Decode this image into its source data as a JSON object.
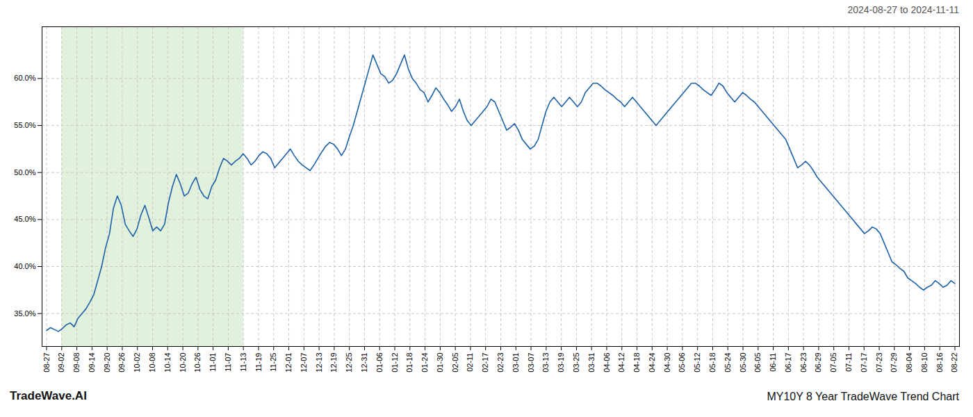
{
  "chart_data": {
    "type": "line",
    "title": "MY10Y 8 Year TradeWave Trend Chart",
    "subtitle": "2024-08-27 to 2024-11-11",
    "annotations": [
      "TradeWave.AI"
    ],
    "color": "#1a5fa8",
    "grid": true,
    "shaded_span": {
      "x": [
        1,
        13
      ],
      "color": "#c8e6c0"
    },
    "xlim": [
      -0.3,
      60.3
    ],
    "xticks": [
      {
        "value": 0,
        "label": "08-27"
      },
      {
        "value": 1,
        "label": "09-02"
      },
      {
        "value": 2,
        "label": "09-08"
      },
      {
        "value": 3,
        "label": "09-14"
      },
      {
        "value": 4,
        "label": "09-20"
      },
      {
        "value": 5,
        "label": "09-26"
      },
      {
        "value": 6,
        "label": "10-02"
      },
      {
        "value": 7,
        "label": "10-08"
      },
      {
        "value": 8,
        "label": "10-14"
      },
      {
        "value": 9,
        "label": "10-20"
      },
      {
        "value": 10,
        "label": "10-26"
      },
      {
        "value": 11,
        "label": "11-01"
      },
      {
        "value": 12,
        "label": "11-07"
      },
      {
        "value": 13,
        "label": "11-13"
      },
      {
        "value": 14,
        "label": "11-19"
      },
      {
        "value": 15,
        "label": "11-25"
      },
      {
        "value": 16,
        "label": "12-01"
      },
      {
        "value": 17,
        "label": "12-07"
      },
      {
        "value": 18,
        "label": "12-13"
      },
      {
        "value": 19,
        "label": "12-19"
      },
      {
        "value": 20,
        "label": "12-25"
      },
      {
        "value": 21,
        "label": "12-31"
      },
      {
        "value": 22,
        "label": "01-06"
      },
      {
        "value": 23,
        "label": "01-12"
      },
      {
        "value": 24,
        "label": "01-18"
      },
      {
        "value": 25,
        "label": "01-24"
      },
      {
        "value": 26,
        "label": "01-30"
      },
      {
        "value": 27,
        "label": "02-05"
      },
      {
        "value": 28,
        "label": "02-11"
      },
      {
        "value": 29,
        "label": "02-17"
      },
      {
        "value": 30,
        "label": "02-23"
      },
      {
        "value": 31,
        "label": "03-01"
      },
      {
        "value": 32,
        "label": "03-07"
      },
      {
        "value": 33,
        "label": "03-13"
      },
      {
        "value": 34,
        "label": "03-19"
      },
      {
        "value": 35,
        "label": "03-25"
      },
      {
        "value": 36,
        "label": "03-31"
      },
      {
        "value": 37,
        "label": "04-06"
      },
      {
        "value": 38,
        "label": "04-12"
      },
      {
        "value": 39,
        "label": "04-18"
      },
      {
        "value": 40,
        "label": "04-24"
      },
      {
        "value": 41,
        "label": "04-30"
      },
      {
        "value": 42,
        "label": "05-06"
      },
      {
        "value": 43,
        "label": "05-12"
      },
      {
        "value": 44,
        "label": "05-18"
      },
      {
        "value": 45,
        "label": "05-24"
      },
      {
        "value": 46,
        "label": "05-30"
      },
      {
        "value": 47,
        "label": "06-05"
      },
      {
        "value": 48,
        "label": "06-11"
      },
      {
        "value": 49,
        "label": "06-17"
      },
      {
        "value": 50,
        "label": "06-23"
      },
      {
        "value": 51,
        "label": "06-29"
      },
      {
        "value": 52,
        "label": "07-05"
      },
      {
        "value": 53,
        "label": "07-11"
      },
      {
        "value": 54,
        "label": "07-17"
      },
      {
        "value": 55,
        "label": "07-23"
      },
      {
        "value": 56,
        "label": "07-29"
      },
      {
        "value": 57,
        "label": "08-04"
      },
      {
        "value": 58,
        "label": "08-10"
      },
      {
        "value": 59,
        "label": "08-16"
      },
      {
        "value": 60,
        "label": "08-22"
      }
    ],
    "ylim": [
      31.5,
      65.5
    ],
    "yticks": [
      {
        "value": 35.0,
        "label": "35.0%"
      },
      {
        "value": 40.0,
        "label": "40.0%"
      },
      {
        "value": 45.0,
        "label": "45.0%"
      },
      {
        "value": 50.0,
        "label": "50.0%"
      },
      {
        "value": 55.0,
        "label": "55.0%"
      },
      {
        "value": 60.0,
        "label": "60.0%"
      }
    ],
    "values": [
      33.2,
      33.5,
      33.3,
      33.1,
      33.4,
      33.8,
      34.0,
      33.6,
      34.5,
      35.0,
      35.5,
      36.2,
      37.0,
      38.5,
      40.0,
      42.0,
      43.5,
      46.2,
      47.5,
      46.5,
      44.5,
      43.8,
      43.2,
      44.0,
      45.5,
      46.5,
      45.2,
      43.8,
      44.2,
      43.8,
      44.5,
      46.8,
      48.5,
      49.8,
      48.8,
      47.5,
      47.8,
      48.8,
      49.5,
      48.2,
      47.5,
      47.2,
      48.5,
      49.2,
      50.5,
      51.5,
      51.2,
      50.8,
      51.2,
      51.5,
      52.0,
      51.5,
      50.8,
      51.2,
      51.8,
      52.2,
      52.0,
      51.5,
      50.5,
      51.0,
      51.5,
      52.0,
      52.5,
      51.8,
      51.2,
      50.8,
      50.5,
      50.2,
      50.8,
      51.5,
      52.2,
      52.8,
      53.2,
      53.0,
      52.5,
      51.8,
      52.5,
      53.8,
      55.0,
      56.5,
      58.0,
      59.5,
      61.0,
      62.5,
      61.5,
      60.5,
      60.2,
      59.5,
      59.8,
      60.5,
      61.5,
      62.5,
      61.0,
      60.0,
      59.5,
      58.8,
      58.5,
      57.5,
      58.2,
      59.0,
      58.5,
      57.8,
      57.2,
      56.5,
      57.0,
      57.8,
      56.5,
      55.5,
      55.0,
      55.5,
      56.0,
      56.5,
      57.0,
      57.8,
      57.5,
      56.5,
      55.5,
      54.5,
      54.8,
      55.2,
      54.5,
      53.5,
      53.0,
      52.5,
      52.8,
      53.5,
      55.0,
      56.5,
      57.5,
      58.0,
      57.5,
      57.0,
      57.5,
      58.0,
      57.5,
      57.0,
      57.5,
      58.5,
      59.0,
      59.5,
      59.5,
      59.2,
      58.8,
      58.5,
      58.2,
      57.8,
      57.5,
      57.0,
      57.5,
      58.0,
      57.5,
      57.0,
      56.5,
      56.0,
      55.5,
      55.0,
      55.5,
      56.0,
      56.5,
      57.0,
      57.5,
      58.0,
      58.5,
      59.0,
      59.5,
      59.5,
      59.2,
      58.8,
      58.5,
      58.2,
      58.8,
      59.5,
      59.2,
      58.5,
      58.0,
      57.5,
      58.0,
      58.5,
      58.2,
      57.8,
      57.5,
      57.0,
      56.5,
      56.0,
      55.5,
      55.0,
      54.5,
      54.0,
      53.5,
      52.5,
      51.5,
      50.5,
      50.8,
      51.2,
      50.8,
      50.2,
      49.5,
      49.0,
      48.5,
      48.0,
      47.5,
      47.0,
      46.5,
      46.0,
      45.5,
      45.0,
      44.5,
      44.0,
      43.5,
      43.8,
      44.2,
      44.0,
      43.5,
      42.5,
      41.5,
      40.5,
      40.2,
      39.8,
      39.5,
      38.8,
      38.5,
      38.2,
      37.8,
      37.5,
      37.8,
      38.0,
      38.5,
      38.2,
      37.8,
      38.0,
      38.5,
      38.2
    ]
  }
}
